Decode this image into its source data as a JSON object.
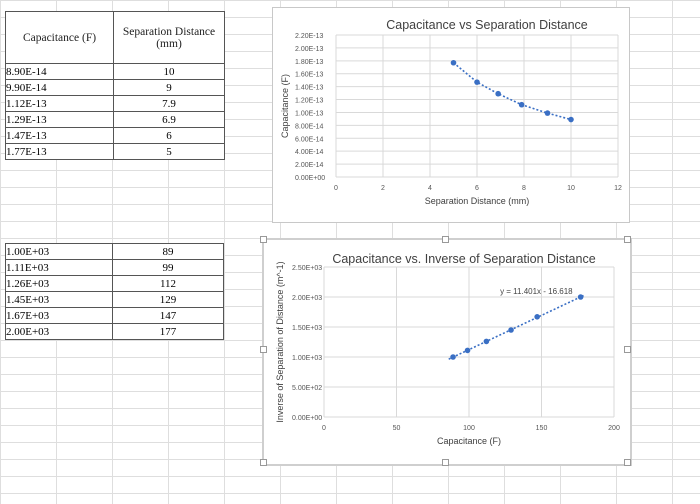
{
  "table1": {
    "headers": [
      "Capacitance (F)",
      "Separation Distance (mm)"
    ],
    "rows": [
      [
        "8.90E-14",
        "10"
      ],
      [
        "9.90E-14",
        "9"
      ],
      [
        "1.12E-13",
        "7.9"
      ],
      [
        "1.29E-13",
        "6.9"
      ],
      [
        "1.47E-13",
        "6"
      ],
      [
        "1.77E-13",
        "5"
      ]
    ]
  },
  "table2": {
    "rows": [
      [
        "1.00E+03",
        "89"
      ],
      [
        "1.11E+03",
        "99"
      ],
      [
        "1.26E+03",
        "112"
      ],
      [
        "1.45E+03",
        "129"
      ],
      [
        "1.67E+03",
        "147"
      ],
      [
        "2.00E+03",
        "177"
      ]
    ]
  },
  "chart_data": [
    {
      "type": "scatter",
      "title": "Capacitance vs Separation Distance",
      "xlabel": "Separation Distance (mm)",
      "ylabel": "Capacitance (F)",
      "xlim": [
        0,
        12
      ],
      "ylim": [
        0,
        2.2e-13
      ],
      "x_ticks": [
        "0",
        "2",
        "4",
        "6",
        "8",
        "10",
        "12"
      ],
      "y_ticks": [
        "0.00E+00",
        "2.00E-14",
        "4.00E-14",
        "6.00E-14",
        "8.00E-14",
        "1.00E-13",
        "1.20E-13",
        "1.40E-13",
        "1.60E-13",
        "1.80E-13",
        "2.00E-13",
        "2.20E-13"
      ],
      "x": [
        5,
        6,
        6.9,
        7.9,
        9,
        10
      ],
      "y": [
        1.77e-13,
        1.47e-13,
        1.29e-13,
        1.12e-13,
        9.9e-14,
        8.9e-14
      ],
      "grid": true
    },
    {
      "type": "scatter",
      "title": "Capacitance vs. Inverse of Separation Distance",
      "xlabel": "Capacitance (F)",
      "ylabel": "Inverse of Separation of Distance (m^-1)",
      "xlim": [
        0,
        200
      ],
      "ylim": [
        0,
        2500
      ],
      "x_ticks": [
        "0",
        "50",
        "100",
        "150",
        "200"
      ],
      "y_ticks": [
        "0.00E+00",
        "5.00E+02",
        "1.00E+03",
        "1.50E+03",
        "2.00E+03",
        "2.50E+03"
      ],
      "x": [
        89,
        99,
        112,
        129,
        147,
        177
      ],
      "y": [
        1000,
        1110,
        1260,
        1450,
        1670,
        2000
      ],
      "trendline": {
        "label": "y = 11.401x - 16.618",
        "slope": 11.401,
        "intercept": -16.618
      },
      "grid": true
    }
  ],
  "colors": {
    "point": "#3a6fc4",
    "grid": "#d9d9d9",
    "trend": "#3a6fc4"
  }
}
